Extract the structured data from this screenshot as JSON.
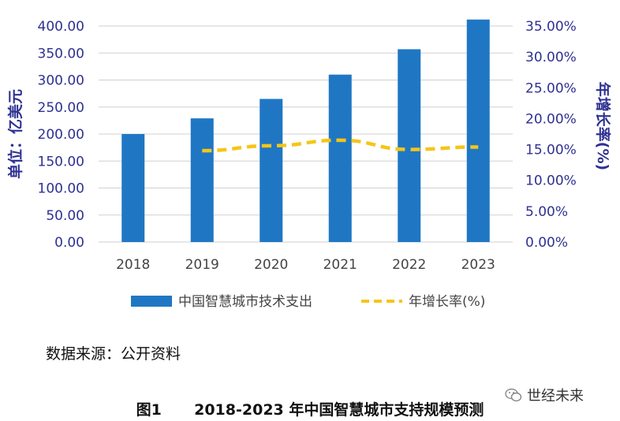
{
  "chart_data": {
    "type": "bar",
    "categories": [
      "2018",
      "2019",
      "2020",
      "2021",
      "2022",
      "2023"
    ],
    "series": [
      {
        "name": "中国智慧城市技术支出",
        "type": "bar",
        "axis": "left",
        "values": [
          200,
          229,
          265,
          310,
          357,
          412
        ]
      },
      {
        "name": "年增长率(%)",
        "type": "line",
        "axis": "right",
        "values": [
          null,
          14.8,
          15.6,
          16.5,
          15.0,
          15.4
        ]
      }
    ],
    "ylabel": "单位：亿美元",
    "y2label": "年增长率(%)",
    "ylim": [
      0,
      400
    ],
    "y2lim": [
      0,
      35
    ],
    "yticks": [
      "0.00",
      "50.00",
      "100.00",
      "150.00",
      "200.00",
      "250.00",
      "300.00",
      "350.00",
      "400.00"
    ],
    "y2ticks": [
      "0.00%",
      "5.00%",
      "10.00%",
      "15.00%",
      "20.00%",
      "25.00%",
      "30.00%",
      "35.00%"
    ],
    "grid": true,
    "legend": "bottom",
    "colors": {
      "bar": "#1f77c4",
      "line": "#f5c518",
      "axis_text": "#2e3192"
    }
  },
  "source_text": "数据来源：公开资料",
  "caption_prefix": "图1",
  "caption_title": "2018-2023 年中国智慧城市支持规模预测",
  "watermark_text": "世经未来",
  "watermark_icon": "wechat-icon"
}
